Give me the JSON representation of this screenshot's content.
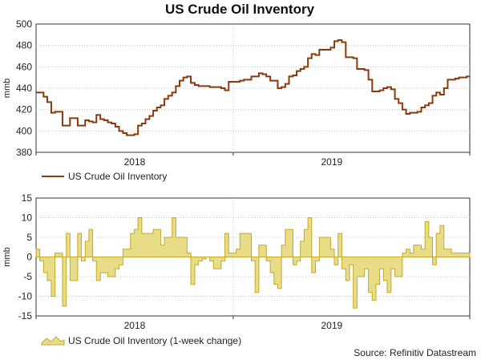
{
  "title": "US Crude Oil Inventory",
  "source": "Source: Refinitiv Datastream",
  "colors": {
    "line": "#8b3a0e",
    "bar_fill": "#e8dc86",
    "bar_stroke": "#c2a92a",
    "grid": "#c8c8c8",
    "axis": "#333333"
  },
  "chart_data": [
    {
      "type": "line",
      "ylabel": "mmb",
      "ylim": [
        380,
        500
      ],
      "yticks": [
        380,
        400,
        420,
        440,
        460,
        480,
        500
      ],
      "xlim": [
        2017.5,
        2019.7
      ],
      "xtick_labels": [
        {
          "x": 2018.0,
          "label": "2018"
        },
        {
          "x": 2019.0,
          "label": "2019"
        }
      ],
      "grid": true,
      "legend": "bottom-left",
      "series": [
        {
          "name": "US Crude Oil Inventory",
          "x": [
            2017.5,
            2017.519,
            2017.538,
            2017.557,
            2017.577,
            2017.596,
            2017.615,
            2017.634,
            2017.653,
            2017.672,
            2017.692,
            2017.711,
            2017.73,
            2017.749,
            2017.768,
            2017.787,
            2017.806,
            2017.826,
            2017.845,
            2017.864,
            2017.883,
            2017.902,
            2017.921,
            2017.941,
            2017.96,
            2017.979,
            2017.998,
            2018.017,
            2018.036,
            2018.055,
            2018.075,
            2018.094,
            2018.113,
            2018.132,
            2018.151,
            2018.17,
            2018.19,
            2018.209,
            2018.228,
            2018.247,
            2018.266,
            2018.285,
            2018.305,
            2018.324,
            2018.343,
            2018.362,
            2018.381,
            2018.4,
            2018.419,
            2018.439,
            2018.458,
            2018.477,
            2018.496,
            2018.515,
            2018.534,
            2018.554,
            2018.573,
            2018.592,
            2018.611,
            2018.63,
            2018.649,
            2018.668,
            2018.688,
            2018.707,
            2018.726,
            2018.745,
            2018.764,
            2018.783,
            2018.803,
            2018.822,
            2018.841,
            2018.86,
            2018.879,
            2018.898,
            2018.917,
            2018.937,
            2018.956,
            2018.975,
            2018.994,
            2019.013,
            2019.032,
            2019.051,
            2019.071,
            2019.09,
            2019.109,
            2019.128,
            2019.147,
            2019.166,
            2019.186,
            2019.205,
            2019.224,
            2019.243,
            2019.262,
            2019.281,
            2019.301,
            2019.32,
            2019.339,
            2019.358,
            2019.377,
            2019.396,
            2019.415,
            2019.434,
            2019.454,
            2019.473,
            2019.492,
            2019.511,
            2019.53,
            2019.549,
            2019.569,
            2019.588,
            2019.607,
            2019.626,
            2019.645,
            2019.665,
            2019.684
          ],
          "values": [
            436,
            436,
            432,
            427,
            417,
            418,
            418,
            405,
            405,
            412,
            412,
            405,
            405,
            410,
            409,
            408,
            415,
            411,
            410,
            408,
            407,
            404,
            400,
            398,
            396,
            396,
            397,
            405,
            407,
            411,
            414,
            419,
            422,
            424,
            430,
            433,
            436,
            442,
            447,
            450,
            451,
            445,
            443,
            442,
            442,
            442,
            441,
            441,
            441,
            440,
            438,
            446,
            446,
            446,
            447,
            448,
            448,
            451,
            451,
            454,
            453,
            451,
            447,
            447,
            440,
            441,
            444,
            451,
            452,
            456,
            458,
            460,
            468,
            472,
            471,
            476,
            476,
            476,
            478,
            484,
            485,
            483,
            469,
            469,
            468,
            458,
            458,
            457,
            448,
            437,
            437,
            438,
            440,
            441,
            439,
            430,
            426,
            420,
            416,
            417,
            417,
            418,
            422,
            424,
            426,
            433,
            436,
            434,
            440,
            448,
            448,
            449,
            450,
            450,
            451
          ]
        }
      ]
    },
    {
      "type": "bar",
      "ylabel": "mmb",
      "ylim": [
        -15,
        15
      ],
      "yticks": [
        -15,
        -10,
        -5,
        0,
        5,
        10,
        15
      ],
      "xlim": [
        2017.5,
        2019.7
      ],
      "xtick_labels": [
        {
          "x": 2018.0,
          "label": "2018"
        },
        {
          "x": 2019.0,
          "label": "2019"
        }
      ],
      "grid": true,
      "legend": "bottom-left",
      "series": [
        {
          "name": "US Crude Oil Inventory (1-week change)",
          "x": [
            2017.5,
            2017.519,
            2017.538,
            2017.557,
            2017.577,
            2017.596,
            2017.615,
            2017.634,
            2017.653,
            2017.672,
            2017.692,
            2017.711,
            2017.73,
            2017.749,
            2017.768,
            2017.787,
            2017.806,
            2017.826,
            2017.845,
            2017.864,
            2017.883,
            2017.902,
            2017.921,
            2017.941,
            2017.96,
            2017.979,
            2017.998,
            2018.017,
            2018.036,
            2018.055,
            2018.075,
            2018.094,
            2018.113,
            2018.132,
            2018.151,
            2018.17,
            2018.19,
            2018.209,
            2018.228,
            2018.247,
            2018.266,
            2018.285,
            2018.305,
            2018.324,
            2018.343,
            2018.362,
            2018.381,
            2018.4,
            2018.419,
            2018.439,
            2018.458,
            2018.477,
            2018.496,
            2018.515,
            2018.534,
            2018.554,
            2018.573,
            2018.592,
            2018.611,
            2018.63,
            2018.649,
            2018.668,
            2018.688,
            2018.707,
            2018.726,
            2018.745,
            2018.764,
            2018.783,
            2018.803,
            2018.822,
            2018.841,
            2018.86,
            2018.879,
            2018.898,
            2018.917,
            2018.937,
            2018.956,
            2018.975,
            2018.994,
            2019.013,
            2019.032,
            2019.051,
            2019.071,
            2019.09,
            2019.109,
            2019.128,
            2019.147,
            2019.166,
            2019.186,
            2019.205,
            2019.224,
            2019.243,
            2019.262,
            2019.281,
            2019.301,
            2019.32,
            2019.339,
            2019.358,
            2019.377,
            2019.396,
            2019.415,
            2019.434,
            2019.454,
            2019.473,
            2019.492,
            2019.511,
            2019.53,
            2019.549,
            2019.569,
            2019.588,
            2019.607,
            2019.626,
            2019.645,
            2019.665,
            2019.684
          ],
          "values": [
            2,
            -1,
            -4,
            -6,
            -10,
            1,
            1,
            -12.5,
            6,
            -6,
            -6,
            6,
            -1,
            4,
            7,
            -1,
            -6,
            -4,
            -4,
            -5,
            -5,
            -3,
            -2,
            2,
            2,
            6,
            7,
            10,
            6,
            6,
            6,
            7,
            7,
            3,
            5,
            5,
            10,
            5,
            5,
            5,
            1,
            -7,
            -2,
            -1,
            -0.5,
            0,
            -1,
            -3,
            -3,
            -1,
            6,
            1,
            1,
            2,
            6,
            6,
            6,
            -1,
            -9,
            3,
            3,
            -1,
            -4,
            -7,
            -8,
            3,
            7,
            7,
            -2,
            -1,
            4,
            7,
            10,
            -4,
            -1,
            5,
            5,
            5,
            2,
            -2,
            6,
            -3,
            -6,
            -2,
            -13,
            -5,
            -5,
            -3,
            -9,
            -11,
            -7,
            -3,
            -6,
            -9,
            -3,
            -5,
            -5,
            1,
            2,
            1,
            3,
            3,
            2,
            9,
            5,
            -2,
            6,
            8,
            2,
            2,
            1,
            1,
            1,
            1,
            1
          ]
        }
      ]
    }
  ]
}
